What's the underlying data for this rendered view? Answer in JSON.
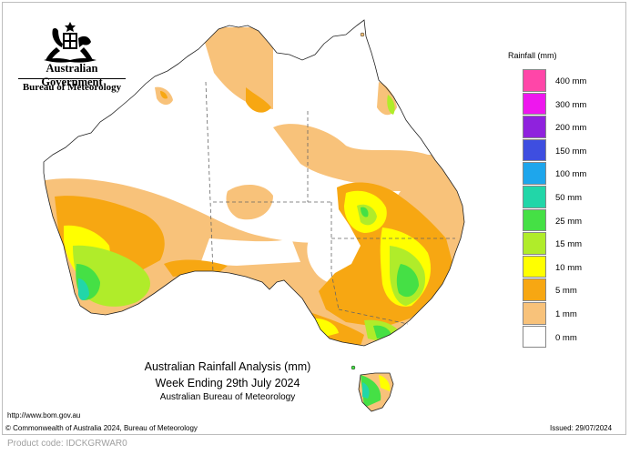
{
  "header": {
    "government": "Australian Government",
    "bureau": "Bureau of Meteorology"
  },
  "legend": {
    "title": "Rainfall (mm)",
    "items": [
      {
        "label": "400 mm",
        "color": "#ff46a8"
      },
      {
        "label": "300 mm",
        "color": "#ee17ee"
      },
      {
        "label": "200 mm",
        "color": "#8f22dd"
      },
      {
        "label": "150 mm",
        "color": "#3e4ee0"
      },
      {
        "label": "100 mm",
        "color": "#1ea6ec"
      },
      {
        "label": "50 mm",
        "color": "#22d6a8"
      },
      {
        "label": "25 mm",
        "color": "#45e045"
      },
      {
        "label": "15 mm",
        "color": "#b0ec2a"
      },
      {
        "label": "10 mm",
        "color": "#ffff00"
      },
      {
        "label": "5 mm",
        "color": "#f7a712"
      },
      {
        "label": "1 mm",
        "color": "#f8c27a"
      },
      {
        "label": "0 mm",
        "color": "#ffffff"
      }
    ]
  },
  "caption": {
    "line1": "Australian Rainfall Analysis (mm)",
    "line2": "Week Ending 29th July 2024",
    "line3": "Australian Bureau of Meteorology"
  },
  "footer": {
    "url": "http://www.bom.gov.au",
    "copyright": "© Commonwealth of Australia 2024, Bureau of Meteorology",
    "issued": "Issued: 29/07/2024",
    "product_code": "Product code: IDCKGRWAR0"
  }
}
